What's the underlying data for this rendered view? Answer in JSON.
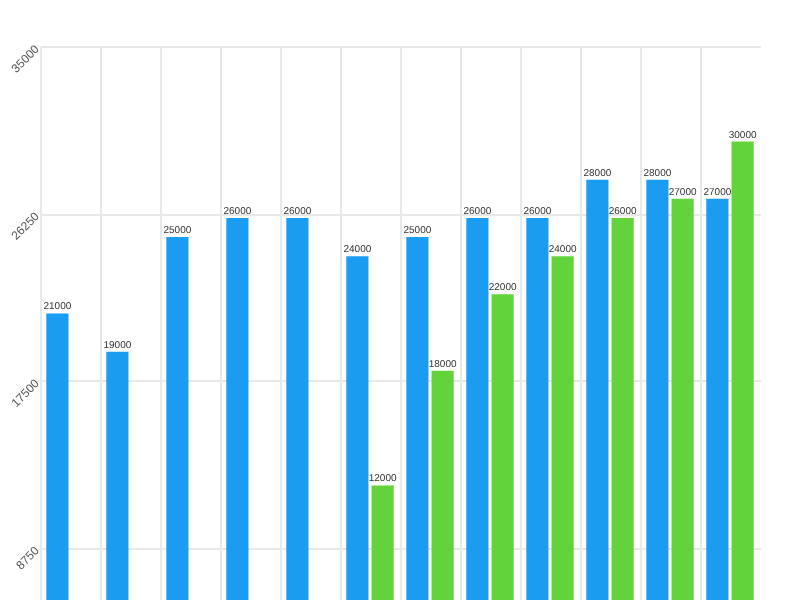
{
  "chart_data": {
    "type": "bar",
    "categories": [
      null,
      null,
      null,
      null,
      null,
      null,
      null,
      null,
      null,
      null,
      null,
      null
    ],
    "series": [
      {
        "color": "#1a9cf0",
        "values": [
          21000,
          19000,
          25000,
          26000,
          26000,
          24000,
          25000,
          26000,
          26000,
          28000,
          28000,
          27000
        ]
      },
      {
        "color": "#63d33b",
        "values": [
          null,
          null,
          null,
          null,
          null,
          12000,
          18000,
          22000,
          24000,
          26000,
          27000,
          30000
        ]
      }
    ],
    "ylim": [
      6000,
      35000
    ],
    "yticks": [
      8750,
      17500,
      26250,
      35000
    ],
    "grid": true,
    "data_labels": true,
    "tick_labels": "y",
    "legend": false
  }
}
